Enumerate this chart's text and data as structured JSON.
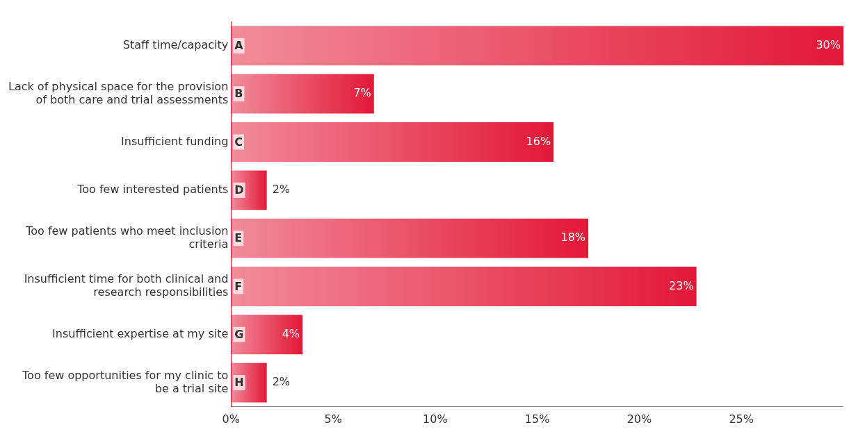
{
  "chart_data": {
    "type": "bar",
    "orientation": "horizontal",
    "categories": [
      "Staff time/capacity",
      "Lack of physical space for the provision of both care and trial assessments",
      "Insufficient funding",
      "Too few interested patients",
      "Too few patients who meet inclusion criteria",
      "Insufficient time for both clinical and research responsibilities",
      "Insufficient expertise at my site",
      "Too few opportunities for my clinic to be a trial site"
    ],
    "values": [
      30,
      7,
      15.8,
      1.75,
      17.5,
      22.8,
      3.5,
      1.75
    ],
    "value_labels": [
      "30%",
      "7%",
      "16%",
      "2%",
      "18%",
      "23%",
      "4%",
      "2%"
    ],
    "color": "#e31837",
    "xlim": [
      0,
      30
    ],
    "xticks": [
      {
        "value": 0,
        "label": "0%"
      },
      {
        "value": 5,
        "label": "5%"
      },
      {
        "value": 10,
        "label": "10%"
      },
      {
        "value": 15,
        "label": "15%"
      },
      {
        "value": 20,
        "label": "20%"
      },
      {
        "value": 25,
        "label": "25%"
      }
    ],
    "grid": false,
    "legend": false,
    "annotations": [
      {
        "text": "A",
        "y": "Staff time/capacity"
      },
      {
        "text": "B",
        "y": "Lack of physical space for the provision of both care and trial assessments"
      },
      {
        "text": "C",
        "y": "Insufficient funding"
      },
      {
        "text": "D",
        "y": "Too few interested patients"
      },
      {
        "text": "E",
        "y": "Too few patients who meet inclusion criteria"
      },
      {
        "text": "F",
        "y": "Insufficient time for both clinical and research responsibilities"
      },
      {
        "text": "G",
        "y": "Insufficient expertise at my site"
      },
      {
        "text": "H",
        "y": "Too few opportunities for my clinic to be a trial site"
      }
    ]
  }
}
